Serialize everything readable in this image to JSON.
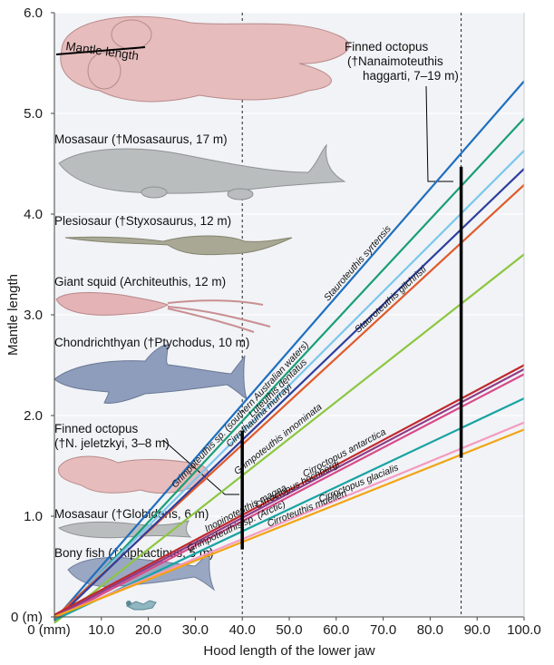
{
  "chart_data": {
    "type": "line",
    "xlabel": "Hood length of the lower jaw",
    "ylabel": "Mantle length",
    "xlim": [
      0,
      100
    ],
    "ylim": [
      0,
      6
    ],
    "x_ticks": [
      "0 (mm)",
      "10.0",
      "20.0",
      "30.0",
      "40.0",
      "50.0",
      "60.0",
      "70.0",
      "80.0",
      "90.0",
      "100.0"
    ],
    "y_ticks": [
      "0 (m)",
      "1.0",
      "2.0",
      "3.0",
      "4.0",
      "5.0",
      "6.0"
    ],
    "grid": "horizontal",
    "reference_lines": [
      {
        "x": 40.0,
        "ymin": 0.67,
        "ymax": 1.85
      },
      {
        "x": 86.6,
        "ymin": 1.58,
        "ymax": 4.47
      }
    ],
    "series": [
      {
        "name": "Stauroteuthis syrtensis",
        "color": "#1f6fbf",
        "label": "Stauroteuthis syrtensis",
        "x": [
          0,
          100
        ],
        "y": [
          -0.03,
          5.32
        ]
      },
      {
        "name": "Grimpoteuthis sp. (southern Australian waters)",
        "color": "#1a9e77",
        "label": "Grimpoteuthis sp. (southern Australian waters)",
        "x": [
          0,
          100
        ],
        "y": [
          -0.06,
          4.95
        ]
      },
      {
        "name": "Luteuthis dentatus",
        "color": "#7cc6ee",
        "label": "Luteuthis dentatus",
        "x": [
          0,
          100
        ],
        "y": [
          -0.03,
          4.63
        ]
      },
      {
        "name": "Stauroteuthis gilchristi",
        "color": "#e05a2b",
        "label": "Stauroteuthis gilchristi",
        "x": [
          0,
          100
        ],
        "y": [
          -0.01,
          4.29
        ]
      },
      {
        "name": "Cirrothauma murrayi",
        "color": "#2e3f9e",
        "label": "Cirrothauma murrayi",
        "x": [
          0,
          100
        ],
        "y": [
          -0.04,
          4.45
        ]
      },
      {
        "name": "Grimpoteuthis innominata",
        "color": "#8cc63f",
        "label": "Grimpoteuthis innominata",
        "x": [
          0,
          100
        ],
        "y": [
          -0.06,
          3.6
        ]
      },
      {
        "name": "Cirroctopus antarctica",
        "color": "#c0282d",
        "label": "Cirroctopus antarctica",
        "x": [
          0,
          100
        ],
        "y": [
          0.02,
          2.5
        ]
      },
      {
        "name": "Inopinoteuthis magna",
        "color": "#8e3b86",
        "label": "Inopinoteuthis magna",
        "x": [
          0,
          100
        ],
        "y": [
          0.0,
          2.46
        ]
      },
      {
        "name": "Cirroctopus hochbergi",
        "color": "#d64a8a",
        "label": "Cirroctopus hochbergi",
        "x": [
          0,
          100
        ],
        "y": [
          -0.02,
          2.41
        ]
      },
      {
        "name": "Grimpoteuthis sp. (Arctic)",
        "color": "#18a3a3",
        "label": "Grimpoteuthis sp. (Arctic)",
        "x": [
          0,
          100
        ],
        "y": [
          -0.03,
          2.17
        ]
      },
      {
        "name": "Cirroctopus glacialis",
        "color": "#f49ac1",
        "label": "Cirroctopus glacialis",
        "x": [
          0,
          100
        ],
        "y": [
          0.0,
          1.93
        ]
      },
      {
        "name": "Cirroteuthis muelleri",
        "color": "#f2a413",
        "label": "Cirroteuthis muelleri",
        "x": [
          0,
          100
        ],
        "y": [
          0.0,
          1.86
        ]
      }
    ],
    "annotations": [
      {
        "text": "Mantle length",
        "kind": "size-label"
      },
      {
        "text_lines": [
          "Finned octopus",
          "(†Nanaimoteuthis",
          "haggarti, 7–19 m)"
        ]
      },
      {
        "text": "Mosasaur (†Mosasaurus, 17 m)"
      },
      {
        "text": "Plesiosaur (†Styxosaurus, 12 m)"
      },
      {
        "text": "Giant squid (Architeuthis, 12 m)"
      },
      {
        "text": "Chondrichthyan (†Ptychodus, 10 m)"
      },
      {
        "text_lines": [
          "Finned octopus",
          "(†N. jeletzkyi, 3–8 m)"
        ]
      },
      {
        "text": "Mosasaur (†Globidens, 6 m)"
      },
      {
        "text": "Bony fish (†Xiphactinus, 5 m)"
      }
    ]
  },
  "colors": {
    "plot_background": "#f1f3f6",
    "gridline": "#ffffff",
    "range_bar": "#000000",
    "silhouette_octopus": "#e8c4c4",
    "silhouette_reptile": "#b8bcbd",
    "silhouette_shark": "#8c9bb8"
  }
}
